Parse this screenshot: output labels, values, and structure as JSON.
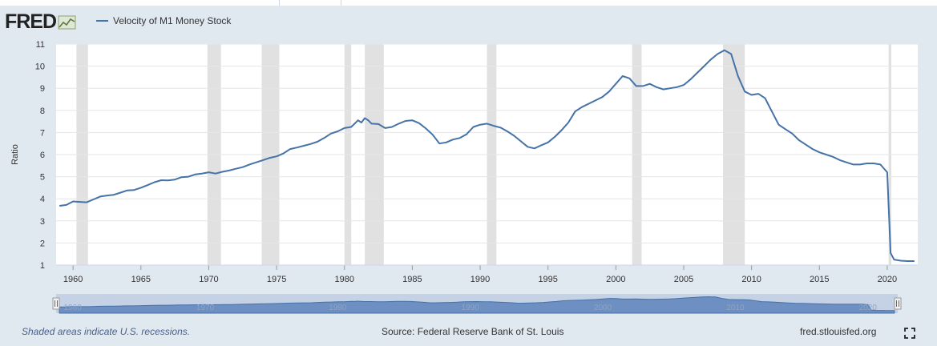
{
  "header": {
    "logo_text": "FRED",
    "legend_label": "Velocity of M1 Money Stock",
    "series_color": "#4572a7"
  },
  "footer": {
    "recession_note": "Shaded areas indicate U.S. recessions.",
    "source": "Source: Federal Reserve Bank of St. Louis",
    "site": "fred.stlouisfed.org"
  },
  "icons": [
    "fred-chart-icon",
    "fullscreen-icon"
  ],
  "chart_data": {
    "type": "line",
    "title": "",
    "xlabel": "",
    "ylabel": "Ratio",
    "xlim": [
      1958.75,
      2022.25
    ],
    "ylim": [
      1,
      11
    ],
    "x_ticks": [
      1960,
      1965,
      1970,
      1975,
      1980,
      1985,
      1990,
      1995,
      2000,
      2005,
      2010,
      2015,
      2020
    ],
    "y_ticks": [
      1,
      2,
      3,
      4,
      5,
      6,
      7,
      8,
      9,
      10,
      11
    ],
    "grid": true,
    "recessions": [
      [
        1960.25,
        1961.1
      ],
      [
        1969.9,
        1970.9
      ],
      [
        1973.9,
        1975.2
      ],
      [
        1980.0,
        1980.5
      ],
      [
        1981.5,
        1982.9
      ],
      [
        1990.5,
        1991.2
      ],
      [
        2001.2,
        2001.9
      ],
      [
        2007.9,
        2009.5
      ],
      [
        2020.1,
        2020.3
      ]
    ],
    "navigator_labels": [
      "1960",
      "1970",
      "1980",
      "1990",
      "2000",
      "2010",
      "2020"
    ],
    "series": [
      {
        "name": "Velocity of M1 Money Stock",
        "color": "#4572a7",
        "x": [
          1959.0,
          1959.5,
          1960.0,
          1960.5,
          1961.0,
          1961.5,
          1962.0,
          1962.5,
          1963.0,
          1963.5,
          1964.0,
          1964.5,
          1965.0,
          1965.5,
          1966.0,
          1966.5,
          1967.0,
          1967.5,
          1968.0,
          1968.5,
          1969.0,
          1969.5,
          1970.0,
          1970.5,
          1971.0,
          1971.5,
          1972.0,
          1972.5,
          1973.0,
          1973.5,
          1974.0,
          1974.5,
          1975.0,
          1975.5,
          1976.0,
          1976.5,
          1977.0,
          1977.5,
          1978.0,
          1978.5,
          1979.0,
          1979.5,
          1980.0,
          1980.5,
          1981.0,
          1981.25,
          1981.5,
          1981.75,
          1982.0,
          1982.5,
          1983.0,
          1983.5,
          1984.0,
          1984.5,
          1985.0,
          1985.5,
          1986.0,
          1986.5,
          1987.0,
          1987.5,
          1988.0,
          1988.5,
          1989.0,
          1989.5,
          1990.0,
          1990.5,
          1991.0,
          1991.5,
          1992.0,
          1992.5,
          1993.0,
          1993.5,
          1994.0,
          1994.5,
          1995.0,
          1995.5,
          1996.0,
          1996.5,
          1997.0,
          1997.5,
          1998.0,
          1998.5,
          1999.0,
          1999.5,
          2000.0,
          2000.5,
          2001.0,
          2001.5,
          2002.0,
          2002.5,
          2003.0,
          2003.5,
          2004.0,
          2004.5,
          2005.0,
          2005.5,
          2006.0,
          2006.5,
          2007.0,
          2007.5,
          2008.0,
          2008.5,
          2009.0,
          2009.5,
          2010.0,
          2010.5,
          2011.0,
          2011.5,
          2012.0,
          2012.5,
          2013.0,
          2013.5,
          2014.0,
          2014.5,
          2015.0,
          2015.5,
          2016.0,
          2016.5,
          2017.0,
          2017.5,
          2018.0,
          2018.5,
          2019.0,
          2019.5,
          2020.0,
          2020.25,
          2020.5,
          2021.0,
          2021.5,
          2022.0
        ],
        "values": [
          3.68,
          3.72,
          3.88,
          3.86,
          3.84,
          3.97,
          4.1,
          4.15,
          4.18,
          4.28,
          4.38,
          4.4,
          4.5,
          4.62,
          4.75,
          4.84,
          4.83,
          4.87,
          4.98,
          5.0,
          5.1,
          5.14,
          5.2,
          5.14,
          5.22,
          5.28,
          5.36,
          5.43,
          5.55,
          5.65,
          5.75,
          5.85,
          5.92,
          6.05,
          6.25,
          6.32,
          6.4,
          6.48,
          6.58,
          6.75,
          6.95,
          7.05,
          7.2,
          7.25,
          7.55,
          7.45,
          7.65,
          7.55,
          7.4,
          7.38,
          7.2,
          7.25,
          7.4,
          7.52,
          7.55,
          7.42,
          7.18,
          6.9,
          6.5,
          6.55,
          6.68,
          6.75,
          6.92,
          7.25,
          7.35,
          7.4,
          7.3,
          7.22,
          7.05,
          6.85,
          6.6,
          6.35,
          6.28,
          6.42,
          6.55,
          6.8,
          7.1,
          7.45,
          7.95,
          8.15,
          8.3,
          8.45,
          8.6,
          8.85,
          9.2,
          9.55,
          9.45,
          9.1,
          9.1,
          9.2,
          9.05,
          8.95,
          9.0,
          9.05,
          9.15,
          9.4,
          9.7,
          10.0,
          10.3,
          10.55,
          10.72,
          10.55,
          9.55,
          8.85,
          8.7,
          8.75,
          8.55,
          7.95,
          7.35,
          7.15,
          6.95,
          6.65,
          6.45,
          6.25,
          6.1,
          6.0,
          5.9,
          5.75,
          5.65,
          5.55,
          5.55,
          5.6,
          5.6,
          5.55,
          5.2,
          1.55,
          1.25,
          1.2,
          1.18,
          1.18
        ]
      }
    ]
  }
}
